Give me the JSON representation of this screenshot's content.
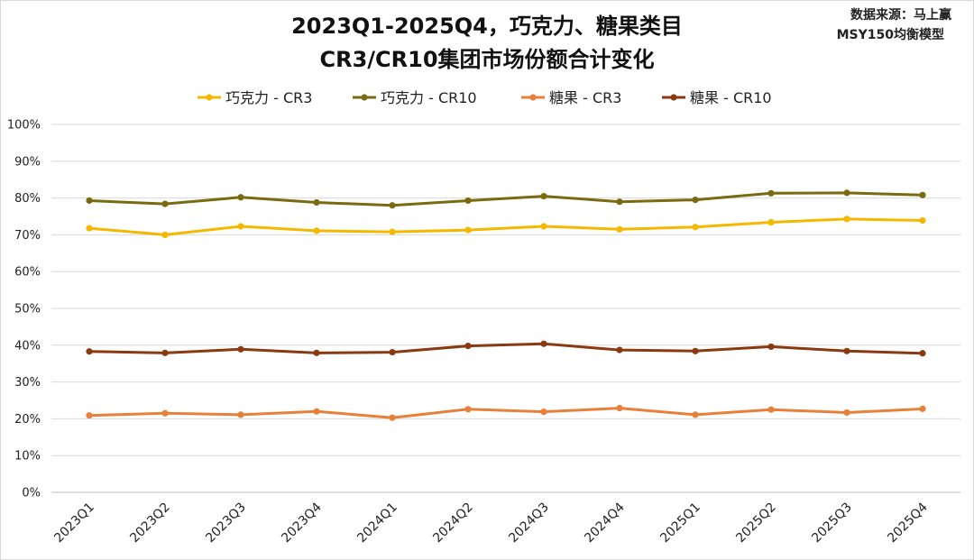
{
  "header": {
    "title_line1": "2023Q1-2025Q4，巧克力、糖果类目",
    "title_line2": "CR3/CR10集团市场份额合计变化",
    "source_line1": "数据来源：马上赢",
    "source_line2": "MSY150均衡模型"
  },
  "chart_data": {
    "type": "line",
    "title": "2023Q1-2025Q4，巧克力、糖果类目 CR3/CR10集团市场份额合计变化",
    "xlabel": "",
    "ylabel": "",
    "ylim": [
      0,
      100
    ],
    "yticks": [
      "0%",
      "10%",
      "20%",
      "30%",
      "40%",
      "50%",
      "60%",
      "70%",
      "80%",
      "90%",
      "100%"
    ],
    "grid": true,
    "legend_position": "top",
    "categories": [
      "2023Q1",
      "2023Q2",
      "2023Q3",
      "2023Q4",
      "2024Q1",
      "2024Q2",
      "2024Q3",
      "2024Q4",
      "2025Q1",
      "2025Q2",
      "2025Q3",
      "2025Q4"
    ],
    "series": [
      {
        "name": "巧克力 - CR3",
        "color": "#f5b800",
        "values": [
          71.8,
          70.0,
          72.3,
          71.1,
          70.8,
          71.3,
          72.3,
          71.5,
          72.1,
          73.4,
          74.3,
          73.9
        ]
      },
      {
        "name": "巧克力 - CR10",
        "color": "#7a6a10",
        "values": [
          79.3,
          78.4,
          80.2,
          78.8,
          78.0,
          79.3,
          80.5,
          79.0,
          79.5,
          81.3,
          81.4,
          80.8
        ]
      },
      {
        "name": "糖果 - CR3",
        "color": "#e8803a",
        "values": [
          20.9,
          21.5,
          21.1,
          22.0,
          20.3,
          22.6,
          21.9,
          22.9,
          21.1,
          22.5,
          21.7,
          22.7
        ]
      },
      {
        "name": "糖果 - CR10",
        "color": "#8a3a10",
        "values": [
          38.3,
          37.9,
          38.9,
          37.9,
          38.1,
          39.8,
          40.4,
          38.7,
          38.4,
          39.6,
          38.4,
          37.8
        ]
      }
    ]
  }
}
